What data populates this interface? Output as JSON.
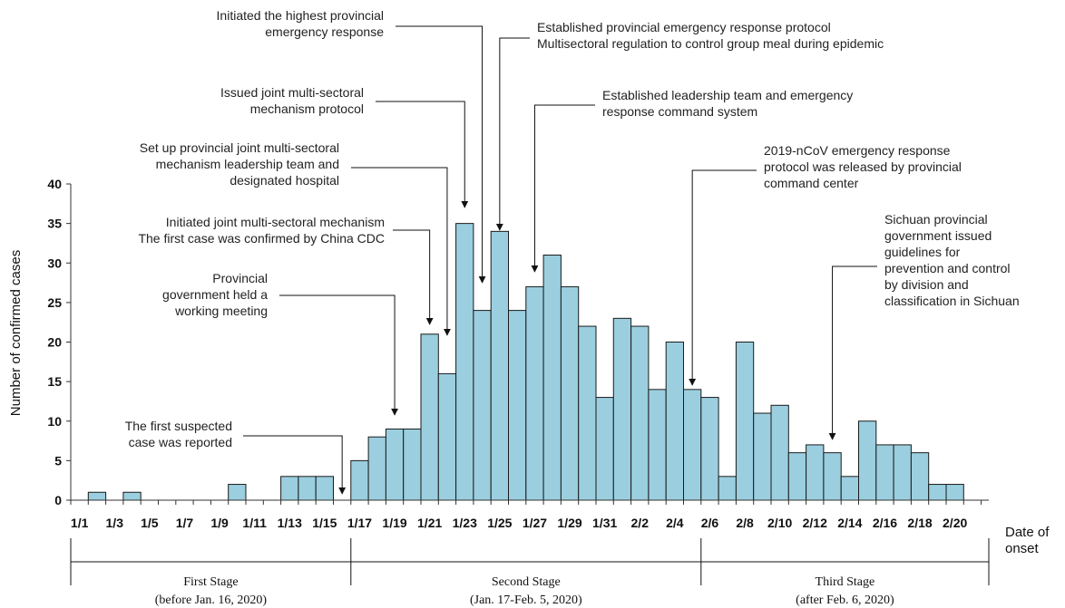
{
  "chart_data": {
    "type": "bar",
    "title": "",
    "xlabel": "Date of onset",
    "ylabel": "Number of confirmed cases",
    "ylim": [
      0,
      40
    ],
    "yticks": [
      0,
      5,
      10,
      15,
      20,
      25,
      30,
      35,
      40
    ],
    "grid": false,
    "bar_color": "#9bcfdf",
    "categories": [
      "1/1",
      "1/2",
      "1/3",
      "1/4",
      "1/5",
      "1/6",
      "1/7",
      "1/8",
      "1/9",
      "1/10",
      "1/11",
      "1/12",
      "1/13",
      "1/14",
      "1/15",
      "1/16",
      "1/17",
      "1/18",
      "1/19",
      "1/20",
      "1/21",
      "1/22",
      "1/23",
      "1/24",
      "1/25",
      "1/26",
      "1/27",
      "1/28",
      "1/29",
      "1/30",
      "1/31",
      "2/1",
      "2/2",
      "2/3",
      "2/4",
      "2/5",
      "2/6",
      "2/7",
      "2/8",
      "2/9",
      "2/10",
      "2/11",
      "2/12",
      "2/13",
      "2/14",
      "2/15",
      "2/16",
      "2/17",
      "2/18",
      "2/19",
      "2/20"
    ],
    "values": [
      0,
      1,
      0,
      1,
      0,
      0,
      0,
      0,
      0,
      2,
      0,
      0,
      3,
      3,
      3,
      0,
      5,
      8,
      9,
      9,
      21,
      16,
      35,
      24,
      34,
      24,
      27,
      31,
      27,
      22,
      13,
      23,
      22,
      14,
      20,
      14,
      13,
      3,
      20,
      11,
      12,
      6,
      7,
      6,
      3,
      10,
      7,
      7,
      6,
      2,
      2
    ],
    "tick_labels": [
      "1/1",
      "1/3",
      "1/5",
      "1/7",
      "1/9",
      "1/11",
      "1/13",
      "1/15",
      "1/17",
      "1/19",
      "1/21",
      "1/23",
      "1/25",
      "1/27",
      "1/29",
      "1/31",
      "2/2",
      "2/4",
      "2/6",
      "2/8",
      "2/10",
      "2/12",
      "2/14",
      "2/16",
      "2/18",
      "2/20"
    ],
    "annotations": [
      {
        "target": "1/16",
        "lines": [
          "The first suspected",
          "case was reported"
        ]
      },
      {
        "target": "1/19",
        "lines": [
          "Provincial",
          "government held a",
          "working meeting"
        ]
      },
      {
        "target": "1/21",
        "lines": [
          "Initiated joint multi-sectoral mechanism",
          "The first case was confirmed by China CDC"
        ]
      },
      {
        "target": "1/22",
        "lines": [
          "Set up provincial joint multi-sectoral",
          "mechanism leadership team and",
          "designated hospital"
        ]
      },
      {
        "target": "1/23",
        "lines": [
          "Issued joint multi-sectoral",
          "mechanism protocol"
        ]
      },
      {
        "target": "1/24",
        "lines": [
          "Initiated the highest provincial",
          "emergency response"
        ]
      },
      {
        "target": "1/25",
        "lines": [
          "Established provincial emergency response protocol",
          "Multisectoral regulation to control group meal during epidemic"
        ]
      },
      {
        "target": "1/27",
        "lines": [
          "Established leadership team and emergency",
          "response command system"
        ]
      },
      {
        "target": "2/5",
        "lines": [
          "2019-nCoV  emergency response",
          "protocol  was released by provincial",
          "command center"
        ]
      },
      {
        "target": "2/13",
        "lines": [
          "Sichuan provincial",
          "government issued",
          "guidelines for",
          "prevention and control",
          "by division and",
          "classification in Sichuan"
        ]
      }
    ],
    "stages": [
      {
        "name": "First Stage",
        "period": "(before Jan. 16, 2020)"
      },
      {
        "name": "Second Stage",
        "period": "(Jan. 17-Feb. 5, 2020)"
      },
      {
        "name": "Third Stage",
        "period": "(after Feb. 6, 2020)"
      }
    ],
    "date_axis_label": [
      "Date of",
      "onset"
    ]
  }
}
